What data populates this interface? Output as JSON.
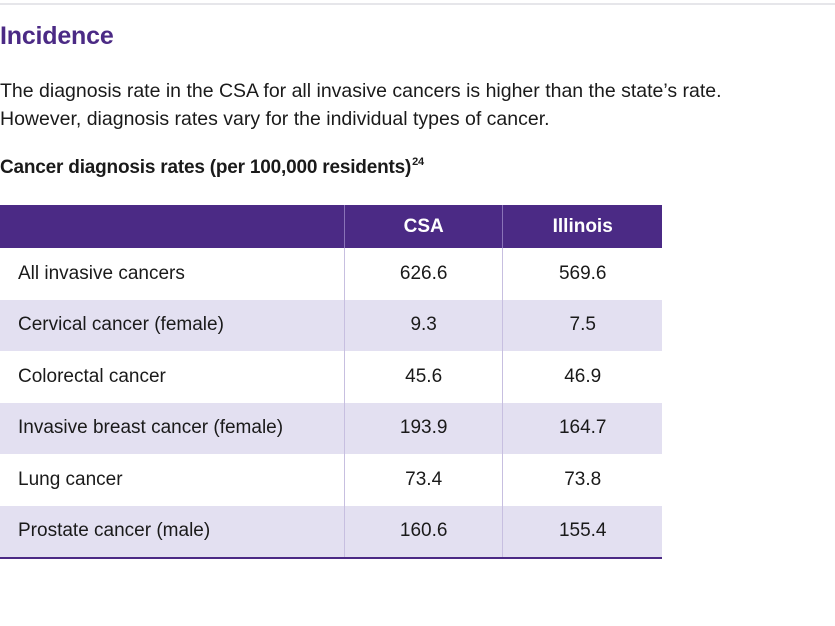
{
  "heading": "Incidence",
  "intro": "The diagnosis rate in the CSA for all invasive cancers is higher than the state’s rate. However, diagnosis rates vary for the individual types of cancer.",
  "table": {
    "caption": "Cancer diagnosis rates (per 100,000 residents)",
    "footnote_ref": "24",
    "columns": [
      "",
      "CSA",
      "Illinois"
    ],
    "rows": [
      {
        "label": "All invasive cancers",
        "csa": "626.6",
        "illinois": "569.6"
      },
      {
        "label": "Cervical cancer (female)",
        "csa": "9.3",
        "illinois": "7.5"
      },
      {
        "label": "Colorectal cancer",
        "csa": "45.6",
        "illinois": "46.9"
      },
      {
        "label": "Invasive breast cancer (female)",
        "csa": "193.9",
        "illinois": "164.7"
      },
      {
        "label": "Lung cancer",
        "csa": "73.4",
        "illinois": "73.8"
      },
      {
        "label": "Prostate cancer (male)",
        "csa": "160.6",
        "illinois": "155.4"
      }
    ]
  },
  "colors": {
    "accent": "#4b2a85",
    "row_stripe": "#e3e0f1"
  }
}
